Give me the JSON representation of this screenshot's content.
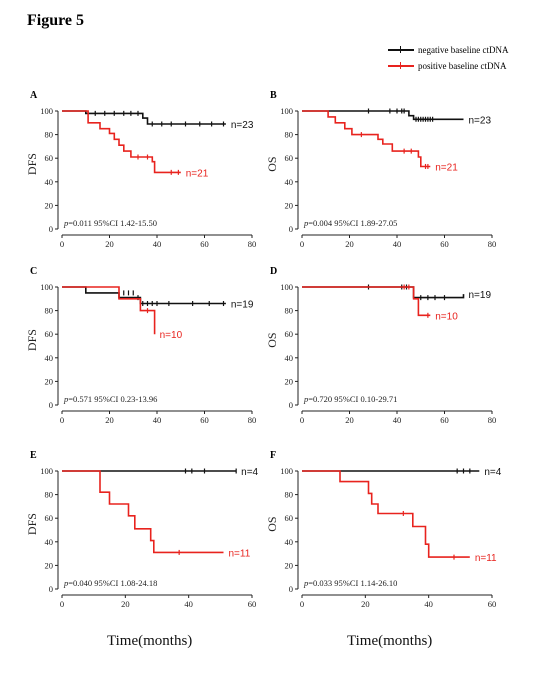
{
  "figure_title": "Figure 5",
  "legend": {
    "items": [
      {
        "label": "negative baseline ctDNA",
        "color": "#111111"
      },
      {
        "label": "positive baseline ctDNA",
        "color": "#e8231e"
      }
    ]
  },
  "x_axis_title": "Time(months)",
  "chart_data": [
    {
      "type": "line",
      "panel": "A",
      "ylabel": "DFS",
      "annotation": "p=0.011 95%CI 1.42-15.50",
      "xlim": [
        0,
        80
      ],
      "ylim": [
        0,
        100
      ],
      "xticks": [
        0,
        20,
        40,
        60,
        80
      ],
      "yticks": [
        0,
        20,
        40,
        60,
        80,
        100
      ],
      "series": [
        {
          "label": "n=23",
          "color": "#111111",
          "steps": [
            [
              0,
              100
            ],
            [
              10,
              100
            ],
            [
              10,
              98
            ],
            [
              34,
              98
            ],
            [
              34,
              94
            ],
            [
              36,
              94
            ],
            [
              36,
              89
            ],
            [
              69,
              89
            ]
          ],
          "censors": [
            [
              14,
              98
            ],
            [
              18,
              98
            ],
            [
              22,
              98
            ],
            [
              26,
              98
            ],
            [
              29,
              98
            ],
            [
              32,
              98
            ],
            [
              38,
              89
            ],
            [
              42,
              89
            ],
            [
              46,
              89
            ],
            [
              52,
              89
            ],
            [
              58,
              89
            ],
            [
              63,
              89
            ],
            [
              68,
              89
            ]
          ]
        },
        {
          "label": "n=21",
          "color": "#e8231e",
          "steps": [
            [
              0,
              100
            ],
            [
              11,
              100
            ],
            [
              11,
              90
            ],
            [
              16,
              90
            ],
            [
              16,
              85
            ],
            [
              20,
              85
            ],
            [
              20,
              81
            ],
            [
              22,
              81
            ],
            [
              22,
              76
            ],
            [
              24,
              76
            ],
            [
              24,
              71
            ],
            [
              26,
              71
            ],
            [
              26,
              66
            ],
            [
              29,
              66
            ],
            [
              29,
              61
            ],
            [
              38,
              61
            ],
            [
              38,
              57
            ],
            [
              39,
              57
            ],
            [
              39,
              48
            ],
            [
              50,
              48
            ]
          ],
          "censors": [
            [
              32,
              61
            ],
            [
              36,
              61
            ],
            [
              46,
              48
            ],
            [
              49,
              48
            ]
          ]
        }
      ]
    },
    {
      "type": "line",
      "panel": "B",
      "ylabel": "OS",
      "annotation": "p=0.004 95%CI 1.89-27.05",
      "xlim": [
        0,
        80
      ],
      "ylim": [
        0,
        100
      ],
      "xticks": [
        0,
        20,
        40,
        60,
        80
      ],
      "yticks": [
        0,
        20,
        40,
        60,
        80,
        100
      ],
      "series": [
        {
          "label": "n=23",
          "color": "#111111",
          "steps": [
            [
              0,
              100
            ],
            [
              45,
              100
            ],
            [
              45,
              96
            ],
            [
              47,
              96
            ],
            [
              47,
              93
            ],
            [
              68,
              93
            ]
          ],
          "censors": [
            [
              28,
              100
            ],
            [
              37,
              100
            ],
            [
              40,
              100
            ],
            [
              42,
              100
            ],
            [
              43,
              100
            ],
            [
              48,
              93
            ],
            [
              49,
              93
            ],
            [
              50,
              93
            ],
            [
              51,
              93
            ],
            [
              52,
              93
            ],
            [
              53,
              93
            ],
            [
              54,
              93
            ],
            [
              55,
              93
            ]
          ]
        },
        {
          "label": "n=21",
          "color": "#e8231e",
          "steps": [
            [
              0,
              100
            ],
            [
              11,
              100
            ],
            [
              11,
              95
            ],
            [
              14,
              95
            ],
            [
              14,
              90
            ],
            [
              18,
              90
            ],
            [
              18,
              85
            ],
            [
              21,
              85
            ],
            [
              21,
              80
            ],
            [
              32,
              80
            ],
            [
              32,
              76
            ],
            [
              34,
              76
            ],
            [
              34,
              72
            ],
            [
              38,
              72
            ],
            [
              38,
              66
            ],
            [
              49,
              66
            ],
            [
              49,
              61
            ],
            [
              50,
              61
            ],
            [
              50,
              53
            ],
            [
              54,
              53
            ]
          ],
          "censors": [
            [
              25,
              80
            ],
            [
              43,
              66
            ],
            [
              46,
              66
            ],
            [
              52,
              53
            ],
            [
              53,
              53
            ]
          ]
        }
      ]
    },
    {
      "type": "line",
      "panel": "C",
      "ylabel": "DFS",
      "annotation": "p=0.571 95%CI 0.23-13.96",
      "xlim": [
        0,
        80
      ],
      "ylim": [
        0,
        100
      ],
      "xticks": [
        0,
        20,
        40,
        60,
        80
      ],
      "yticks": [
        0,
        20,
        40,
        60,
        80,
        100
      ],
      "series": [
        {
          "label": "n=19",
          "color": "#111111",
          "steps": [
            [
              0,
              100
            ],
            [
              10,
              100
            ],
            [
              10,
              95
            ],
            [
              24,
              95
            ],
            [
              24,
              91
            ],
            [
              33,
              91
            ],
            [
              33,
              86
            ],
            [
              69,
              86
            ]
          ],
          "censors": [
            [
              26,
              95
            ],
            [
              28,
              95
            ],
            [
              30,
              95
            ],
            [
              32,
              91
            ],
            [
              34,
              86
            ],
            [
              36,
              86
            ],
            [
              38,
              86
            ],
            [
              40,
              86
            ],
            [
              45,
              86
            ],
            [
              55,
              86
            ],
            [
              62,
              86
            ],
            [
              68,
              86
            ]
          ]
        },
        {
          "label": "n=10",
          "color": "#e8231e",
          "steps": [
            [
              0,
              100
            ],
            [
              24,
              100
            ],
            [
              24,
              90
            ],
            [
              33,
              90
            ],
            [
              33,
              80
            ],
            [
              39,
              80
            ],
            [
              39,
              60
            ]
          ],
          "censors": [
            [
              36,
              80
            ]
          ]
        }
      ]
    },
    {
      "type": "line",
      "panel": "D",
      "ylabel": "OS",
      "annotation": "p=0.720 95%CI 0.10-29.71",
      "xlim": [
        0,
        80
      ],
      "ylim": [
        0,
        100
      ],
      "xticks": [
        0,
        20,
        40,
        60,
        80
      ],
      "yticks": [
        0,
        20,
        40,
        60,
        80,
        100
      ],
      "series": [
        {
          "label": "n=19",
          "color": "#111111",
          "steps": [
            [
              0,
              100
            ],
            [
              47,
              100
            ],
            [
              47,
              91
            ],
            [
              68,
              91
            ],
            [
              68,
              94
            ]
          ],
          "censors": [
            [
              28,
              100
            ],
            [
              42,
              100
            ],
            [
              44,
              100
            ],
            [
              50,
              91
            ],
            [
              53,
              91
            ],
            [
              56,
              91
            ],
            [
              60,
              91
            ]
          ]
        },
        {
          "label": "n=10",
          "color": "#e8231e",
          "steps": [
            [
              0,
              100
            ],
            [
              47,
              100
            ],
            [
              47,
              90
            ],
            [
              49,
              90
            ],
            [
              49,
              76
            ],
            [
              54,
              76
            ]
          ],
          "censors": [
            [
              43,
              100
            ],
            [
              45,
              100
            ],
            [
              53,
              76
            ]
          ]
        }
      ]
    },
    {
      "type": "line",
      "panel": "E",
      "ylabel": "DFS",
      "annotation": "p=0.040 95%CI 1.08-24.18",
      "xlim": [
        0,
        60
      ],
      "ylim": [
        0,
        100
      ],
      "xticks": [
        0,
        20,
        40,
        60
      ],
      "yticks": [
        0,
        20,
        40,
        60,
        80,
        100
      ],
      "series": [
        {
          "label": "n=4",
          "color": "#111111",
          "steps": [
            [
              0,
              100
            ],
            [
              55,
              100
            ]
          ],
          "censors": [
            [
              39,
              100
            ],
            [
              41,
              100
            ],
            [
              45,
              100
            ],
            [
              55,
              100
            ]
          ]
        },
        {
          "label": "n=11",
          "color": "#e8231e",
          "steps": [
            [
              0,
              100
            ],
            [
              12,
              100
            ],
            [
              12,
              82
            ],
            [
              15,
              82
            ],
            [
              15,
              72
            ],
            [
              21,
              72
            ],
            [
              21,
              62
            ],
            [
              23,
              62
            ],
            [
              23,
              51
            ],
            [
              28,
              51
            ],
            [
              28,
              41
            ],
            [
              29,
              41
            ],
            [
              29,
              31
            ],
            [
              51,
              31
            ]
          ],
          "censors": [
            [
              37,
              31
            ]
          ]
        }
      ]
    },
    {
      "type": "line",
      "panel": "F",
      "ylabel": "OS",
      "annotation": "p=0.033 95%CI 1.14-26.10",
      "xlim": [
        0,
        60
      ],
      "ylim": [
        0,
        100
      ],
      "xticks": [
        0,
        20,
        40,
        60
      ],
      "yticks": [
        0,
        20,
        40,
        60,
        80,
        100
      ],
      "series": [
        {
          "label": "n=4",
          "color": "#111111",
          "steps": [
            [
              0,
              100
            ],
            [
              56,
              100
            ]
          ],
          "censors": [
            [
              49,
              100
            ],
            [
              51,
              100
            ],
            [
              53,
              100
            ]
          ]
        },
        {
          "label": "n=11",
          "color": "#e8231e",
          "steps": [
            [
              0,
              100
            ],
            [
              12,
              100
            ],
            [
              12,
              91
            ],
            [
              21,
              91
            ],
            [
              21,
              81
            ],
            [
              22,
              81
            ],
            [
              22,
              72
            ],
            [
              24,
              72
            ],
            [
              24,
              64
            ],
            [
              35,
              64
            ],
            [
              35,
              53
            ],
            [
              39,
              53
            ],
            [
              39,
              38
            ],
            [
              40,
              38
            ],
            [
              40,
              27
            ],
            [
              53,
              27
            ]
          ],
          "censors": [
            [
              32,
              64
            ],
            [
              48,
              27
            ]
          ]
        }
      ]
    }
  ]
}
